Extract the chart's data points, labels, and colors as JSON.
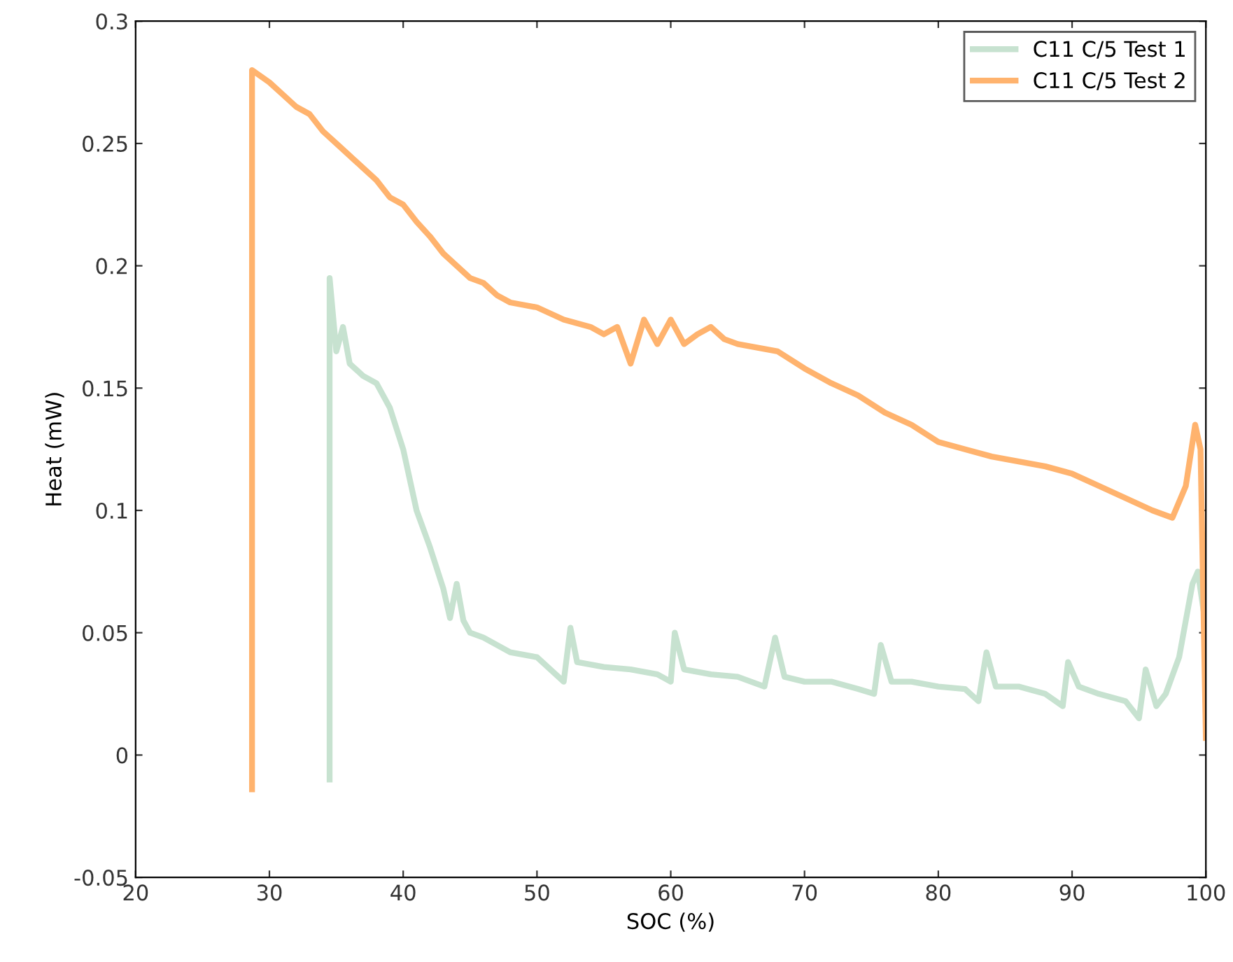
{
  "chart_data": {
    "type": "line",
    "xlabel": "SOC (%)",
    "ylabel": "Heat (mW)",
    "xlim": [
      20,
      100
    ],
    "ylim": [
      -0.05,
      0.3
    ],
    "xticks": [
      20,
      30,
      40,
      50,
      60,
      70,
      80,
      90,
      100
    ],
    "yticks": [
      -0.05,
      0,
      0.05,
      0.1,
      0.15,
      0.2,
      0.25,
      0.3
    ],
    "grid": false,
    "legend": "top right",
    "marker": "none",
    "line_style": "solid",
    "series": [
      {
        "name": "C11 C/5 Test 1",
        "color": "#c7e2d0",
        "x": [
          34.5,
          34.5,
          35,
          35.5,
          36,
          37,
          38,
          39,
          40,
          41,
          42,
          43,
          43.5,
          44,
          44.5,
          45,
          46,
          47,
          48,
          50,
          51,
          52,
          52.5,
          53,
          55,
          57,
          59,
          60,
          60.3,
          61,
          63,
          65,
          66,
          67,
          67.8,
          68.5,
          70,
          72,
          74,
          75.2,
          75.7,
          76.5,
          78,
          80,
          82,
          83,
          83.6,
          84.3,
          86,
          88,
          89.3,
          89.7,
          90.5,
          92,
          94,
          95,
          95.5,
          96.3,
          97,
          98,
          99,
          99.4,
          99.8
        ],
        "values": [
          -0.01,
          0.195,
          0.165,
          0.175,
          0.16,
          0.155,
          0.152,
          0.142,
          0.125,
          0.1,
          0.085,
          0.068,
          0.056,
          0.07,
          0.055,
          0.05,
          0.048,
          0.045,
          0.042,
          0.04,
          0.035,
          0.03,
          0.052,
          0.038,
          0.036,
          0.035,
          0.033,
          0.03,
          0.05,
          0.035,
          0.033,
          0.032,
          0.03,
          0.028,
          0.048,
          0.032,
          0.03,
          0.03,
          0.027,
          0.025,
          0.045,
          0.03,
          0.03,
          0.028,
          0.027,
          0.022,
          0.042,
          0.028,
          0.028,
          0.025,
          0.02,
          0.038,
          0.028,
          0.025,
          0.022,
          0.015,
          0.035,
          0.02,
          0.025,
          0.04,
          0.07,
          0.075,
          0.06
        ]
      },
      {
        "name": "C11 C/5 Test 2",
        "color": "#ffb36e",
        "x": [
          28.7,
          28.7,
          30,
          31,
          32,
          33,
          34,
          35,
          36,
          37,
          38,
          39,
          40,
          41,
          42,
          43,
          44,
          45,
          46,
          47,
          48,
          50,
          52,
          54,
          55,
          56,
          57,
          58,
          59,
          60,
          61,
          62,
          63,
          64,
          65,
          66,
          68,
          70,
          72,
          74,
          76,
          78,
          80,
          82,
          84,
          86,
          88,
          90,
          92,
          94,
          96,
          97.5,
          98.5,
          99.2,
          99.6,
          100
        ],
        "values": [
          -0.014,
          0.28,
          0.275,
          0.27,
          0.265,
          0.262,
          0.255,
          0.25,
          0.245,
          0.24,
          0.235,
          0.228,
          0.225,
          0.218,
          0.212,
          0.205,
          0.2,
          0.195,
          0.193,
          0.188,
          0.185,
          0.183,
          0.178,
          0.175,
          0.172,
          0.175,
          0.16,
          0.178,
          0.168,
          0.178,
          0.168,
          0.172,
          0.175,
          0.17,
          0.168,
          0.167,
          0.165,
          0.158,
          0.152,
          0.147,
          0.14,
          0.135,
          0.128,
          0.125,
          0.122,
          0.12,
          0.118,
          0.115,
          0.11,
          0.105,
          0.1,
          0.097,
          0.11,
          0.135,
          0.125,
          0.007
        ]
      }
    ]
  }
}
